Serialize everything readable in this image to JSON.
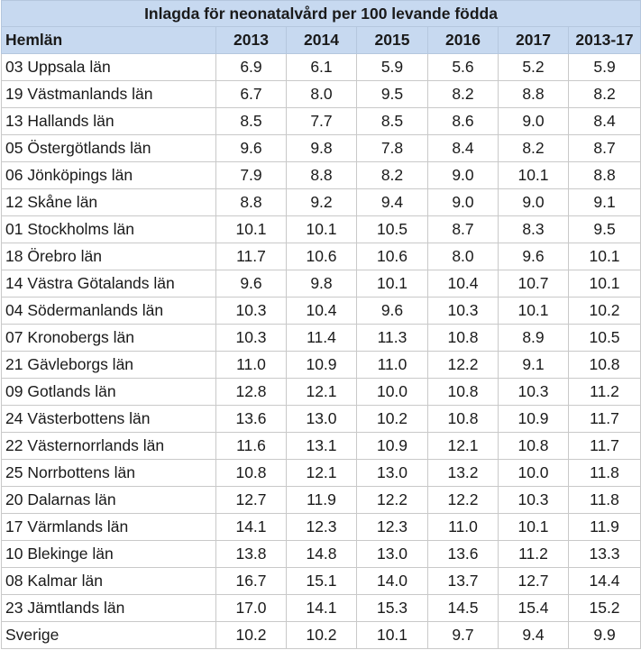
{
  "table": {
    "title": "Inlagda för neonatalvård per 100 levande födda",
    "columns": [
      "Hemlän",
      "2013",
      "2014",
      "2015",
      "2016",
      "2017",
      "2013-17"
    ],
    "rows": [
      [
        "03 Uppsala län",
        "6.9",
        "6.1",
        "5.9",
        "5.6",
        "5.2",
        "5.9"
      ],
      [
        "19 Västmanlands län",
        "6.7",
        "8.0",
        "9.5",
        "8.2",
        "8.8",
        "8.2"
      ],
      [
        "13 Hallands län",
        "8.5",
        "7.7",
        "8.5",
        "8.6",
        "9.0",
        "8.4"
      ],
      [
        "05 Östergötlands län",
        "9.6",
        "9.8",
        "7.8",
        "8.4",
        "8.2",
        "8.7"
      ],
      [
        "06 Jönköpings län",
        "7.9",
        "8.8",
        "8.2",
        "9.0",
        "10.1",
        "8.8"
      ],
      [
        "12 Skåne län",
        "8.8",
        "9.2",
        "9.4",
        "9.0",
        "9.0",
        "9.1"
      ],
      [
        "01 Stockholms län",
        "10.1",
        "10.1",
        "10.5",
        "8.7",
        "8.3",
        "9.5"
      ],
      [
        "18 Örebro län",
        "11.7",
        "10.6",
        "10.6",
        "8.0",
        "9.6",
        "10.1"
      ],
      [
        "14 Västra Götalands län",
        "9.6",
        "9.8",
        "10.1",
        "10.4",
        "10.7",
        "10.1"
      ],
      [
        "04 Södermanlands län",
        "10.3",
        "10.4",
        "9.6",
        "10.3",
        "10.1",
        "10.2"
      ],
      [
        "07 Kronobergs län",
        "10.3",
        "11.4",
        "11.3",
        "10.8",
        "8.9",
        "10.5"
      ],
      [
        "21 Gävleborgs län",
        "11.0",
        "10.9",
        "11.0",
        "12.2",
        "9.1",
        "10.8"
      ],
      [
        "09 Gotlands län",
        "12.8",
        "12.1",
        "10.0",
        "10.8",
        "10.3",
        "11.2"
      ],
      [
        "24 Västerbottens län",
        "13.6",
        "13.0",
        "10.2",
        "10.8",
        "10.9",
        "11.7"
      ],
      [
        "22 Västernorrlands län",
        "11.6",
        "13.1",
        "10.9",
        "12.1",
        "10.8",
        "11.7"
      ],
      [
        "25 Norrbottens län",
        "10.8",
        "12.1",
        "13.0",
        "13.2",
        "10.0",
        "11.8"
      ],
      [
        "20 Dalarnas län",
        "12.7",
        "11.9",
        "12.2",
        "12.2",
        "10.3",
        "11.8"
      ],
      [
        "17 Värmlands län",
        "14.1",
        "12.3",
        "12.3",
        "11.0",
        "10.1",
        "11.9"
      ],
      [
        "10 Blekinge län",
        "13.8",
        "14.8",
        "13.0",
        "13.6",
        "11.2",
        "13.3"
      ],
      [
        "08 Kalmar län",
        "16.7",
        "15.1",
        "14.0",
        "13.7",
        "12.7",
        "14.4"
      ],
      [
        "23 Jämtlands län",
        "17.0",
        "14.1",
        "15.3",
        "14.5",
        "15.4",
        "15.2"
      ],
      [
        "Sverige",
        "10.2",
        "10.2",
        "10.1",
        "9.7",
        "9.4",
        "9.9"
      ]
    ]
  },
  "colors": {
    "header_background": "#c7d9f0",
    "grid_line": "#c9c9c9"
  }
}
